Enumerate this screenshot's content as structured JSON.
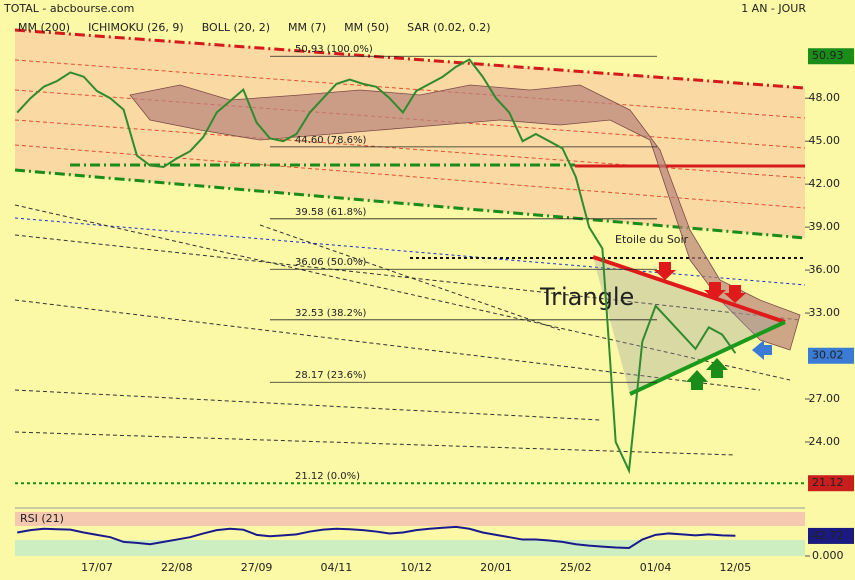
{
  "chart_data": [
    {
      "type": "line",
      "title": "TOTAL - abcbourse.com",
      "subtitle": "1 AN - JOUR",
      "legend_items": [
        {
          "name": "MM (200)",
          "color": "#1a33cc"
        },
        {
          "name": "ICHIMOKU (26, 9)",
          "color": "#1a1a80"
        },
        {
          "name": "BOLL (20, 2)",
          "color": "#e08a1e"
        },
        {
          "name": "MM (7)",
          "color": "#1a8c1a"
        },
        {
          "name": "MM (50)",
          "color": "#d41a1a"
        },
        {
          "name": "SAR (0.02, 0.2)",
          "color": "#b01a1a"
        }
      ],
      "categories": [
        null,
        null,
        null,
        null,
        null,
        null,
        "17/07",
        null,
        null,
        null,
        null,
        null,
        "22/08",
        null,
        null,
        null,
        null,
        null,
        "27/09",
        null,
        null,
        null,
        null,
        null,
        "04/11",
        null,
        null,
        null,
        null,
        null,
        "10/12",
        null,
        null,
        null,
        null,
        null,
        "20/01",
        null,
        null,
        null,
        null,
        null,
        "25/02",
        null,
        null,
        null,
        null,
        null,
        "01/04",
        null,
        null,
        null,
        null,
        null,
        "12/05"
      ],
      "values": [
        47.0,
        48.0,
        48.8,
        49.2,
        49.8,
        49.5,
        48.5,
        48.0,
        47.2,
        44.0,
        43.3,
        43.2,
        43.8,
        44.3,
        45.3,
        47.0,
        47.8,
        48.6,
        46.3,
        45.2,
        45.0,
        45.5,
        47.0,
        48.0,
        49.0,
        49.3,
        49.0,
        48.8,
        48.0,
        47.0,
        48.5,
        49.0,
        49.5,
        50.2,
        50.7,
        49.5,
        48.0,
        47.0,
        45.0,
        45.5,
        45.0,
        44.5,
        42.5,
        39.0,
        37.5,
        24.0,
        22.0,
        31.0,
        33.5,
        32.5,
        31.5,
        30.5,
        32.0,
        31.5,
        30.2
      ],
      "color": "#2e8b2e",
      "ylim": [
        19.6,
        53.6
      ],
      "yticks": [
        {
          "value": 48,
          "label": "48.00"
        },
        {
          "value": 45,
          "label": "45.00"
        },
        {
          "value": 42,
          "label": "42.00"
        },
        {
          "value": 39,
          "label": "39.00"
        },
        {
          "value": 36,
          "label": "36.00"
        },
        {
          "value": 33,
          "label": "33.00"
        },
        {
          "value": 27,
          "label": "27.00"
        },
        {
          "value": 24,
          "label": "24.00"
        }
      ],
      "price_boxes": [
        {
          "value": 50.93,
          "color": "#1a8c1a"
        },
        {
          "value": 30.02,
          "color": "#3a7bd5"
        },
        {
          "value": 21.12,
          "color": "#c81e1e"
        }
      ],
      "levels": [
        {
          "value": 50.93,
          "label": "50.93 (100.0%)"
        },
        {
          "value": 44.6,
          "label": "44.60 (78.6%)"
        },
        {
          "value": 39.58,
          "label": "39.58 (61.8%)"
        },
        {
          "value": 36.06,
          "label": "36.06 (50.0%)"
        },
        {
          "value": 32.53,
          "label": "32.53 (38.2%)"
        },
        {
          "value": 28.17,
          "label": "28.17 (23.6%)"
        },
        {
          "value": 21.12,
          "label": "21.12 (0.0%)"
        }
      ],
      "annotations": [
        "Triangle",
        "Etoile du Soir"
      ]
    },
    {
      "type": "line",
      "title": "RSI (21)",
      "values": [
        50,
        55,
        58,
        57,
        56,
        50,
        45,
        40,
        30,
        28,
        25,
        30,
        35,
        40,
        48,
        55,
        58,
        56,
        45,
        42,
        44,
        46,
        52,
        56,
        58,
        57,
        55,
        52,
        48,
        50,
        55,
        58,
        60,
        62,
        58,
        50,
        45,
        40,
        35,
        35,
        33,
        30,
        25,
        22,
        20,
        18,
        17,
        35,
        45,
        48,
        46,
        44,
        46,
        44,
        43
      ],
      "color": "#1a1a8c",
      "ylim": [
        0,
        100
      ],
      "yticks": [
        {
          "value": 0,
          "label": "0.000"
        }
      ],
      "last_value": 42.72
    }
  ]
}
